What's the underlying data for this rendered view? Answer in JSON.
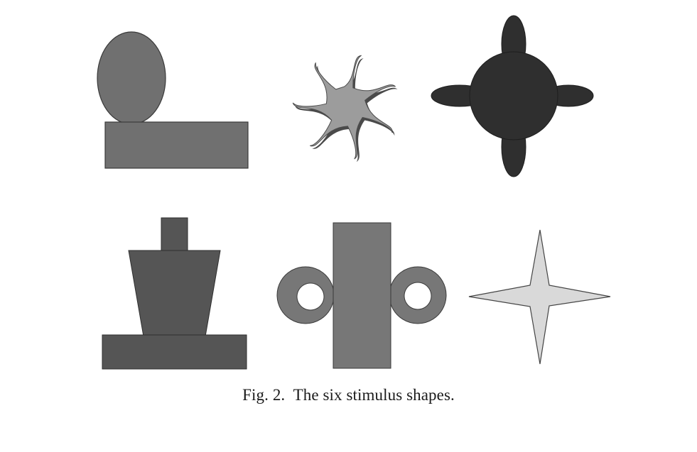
{
  "figure": {
    "caption_label": "Fig. 2.",
    "caption_text": "The six stimulus shapes."
  },
  "shapes": [
    {
      "name": "ellipse-on-slab",
      "fill": "#707070"
    },
    {
      "name": "curled-star",
      "fill": "#9c9c9c"
    },
    {
      "name": "four-lobed-disc",
      "fill": "#2f2f2f"
    },
    {
      "name": "tapered-pedestal",
      "fill": "#555555"
    },
    {
      "name": "ringed-column",
      "fill": "#777777"
    },
    {
      "name": "four-point-star",
      "fill": "#d9d9d9"
    }
  ],
  "colors": {
    "outline": "#3a3a3a",
    "shadow": "#4a4a4a"
  }
}
